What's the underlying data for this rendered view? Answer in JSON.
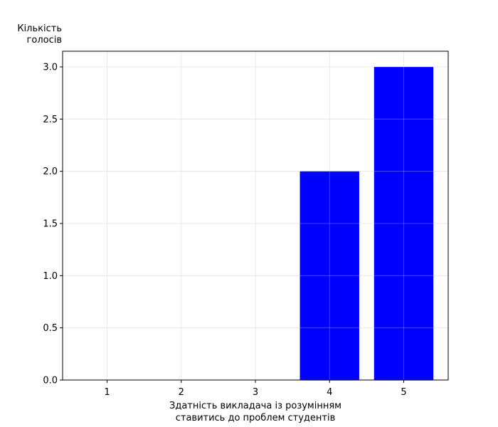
{
  "chart_data": {
    "type": "bar",
    "categories": [
      "1",
      "2",
      "3",
      "4",
      "5"
    ],
    "values": [
      0,
      0,
      0,
      2,
      3
    ],
    "title": "",
    "xlabel": [
      "Здатність викладача із розумінням",
      "ставитись до проблем студентів"
    ],
    "ylabel": [
      "Кількість",
      "голосів"
    ],
    "ylim": [
      0,
      3.15
    ],
    "yticks": [
      "0.0",
      "0.5",
      "1.0",
      "1.5",
      "2.0",
      "2.5",
      "3.0"
    ],
    "grid": true,
    "bar_color": "#0000ff"
  }
}
